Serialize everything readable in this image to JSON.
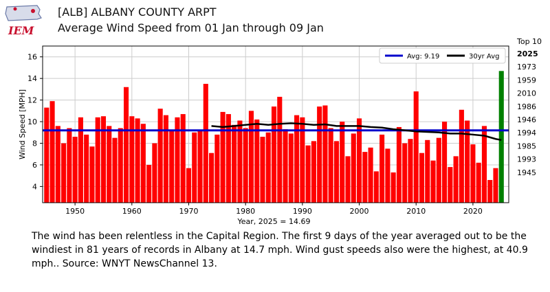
{
  "logo": {
    "text": "IEM",
    "colors": {
      "state": "#d8dcea",
      "mark": "#c8102e"
    }
  },
  "header": {
    "title": "[ALB] ALBANY COUNTY ARPT",
    "subtitle": "Average Wind Speed from 01 Jan through 09 Jan"
  },
  "top10": {
    "title": "Top 10",
    "years": [
      "2025",
      "1973",
      "1959",
      "2010",
      "1986",
      "1946",
      "1994",
      "1985",
      "1993",
      "1945"
    ]
  },
  "caption": "The wind has been relentless in the Capital Region. The first 9 days of the year averaged out to be the windiest in 81 years of records in Albany at 14.7 mph. Wind gust speeds also were the highest, at 40.9 mph.. Source: WNYT NewsChannel 13.",
  "chart_data": {
    "type": "bar",
    "title": "Average Wind Speed from 01 Jan through 09 Jan",
    "xlabel": "Year, 2025 = 14.69",
    "ylabel": "Wind Speed [MPH]",
    "ylim": [
      2.5,
      17.0
    ],
    "xlim": [
      1944.3,
      2026.3
    ],
    "yticks": [
      4,
      6,
      8,
      10,
      12,
      14,
      16
    ],
    "xticks": [
      1950,
      1960,
      1970,
      1980,
      1990,
      2000,
      2010,
      2020
    ],
    "grid": true,
    "legend_position": "top-right",
    "colors": {
      "bar": "#ff0000",
      "highlight": "#008000",
      "avg": "#0000cc",
      "climo": "#000000"
    },
    "highlight_year": 2025,
    "average": {
      "name": "Avg: 9.19",
      "value": 9.19
    },
    "x": [
      1945,
      1946,
      1947,
      1948,
      1949,
      1950,
      1951,
      1952,
      1953,
      1954,
      1955,
      1956,
      1957,
      1958,
      1959,
      1960,
      1961,
      1962,
      1963,
      1964,
      1965,
      1966,
      1967,
      1968,
      1969,
      1970,
      1971,
      1972,
      1973,
      1974,
      1975,
      1976,
      1977,
      1978,
      1979,
      1980,
      1981,
      1982,
      1983,
      1984,
      1985,
      1986,
      1987,
      1988,
      1989,
      1990,
      1991,
      1992,
      1993,
      1994,
      1995,
      1996,
      1997,
      1998,
      1999,
      2000,
      2001,
      2002,
      2003,
      2004,
      2005,
      2006,
      2007,
      2008,
      2009,
      2010,
      2011,
      2012,
      2013,
      2014,
      2015,
      2016,
      2017,
      2018,
      2019,
      2020,
      2021,
      2022,
      2023,
      2024,
      2025
    ],
    "values": [
      11.3,
      11.9,
      9.6,
      8.0,
      9.4,
      8.6,
      10.4,
      8.8,
      7.7,
      10.4,
      10.5,
      9.6,
      8.5,
      9.4,
      13.2,
      10.5,
      10.3,
      9.8,
      6.0,
      8.0,
      11.2,
      10.6,
      9.2,
      10.4,
      10.7,
      5.7,
      9.0,
      9.2,
      13.5,
      7.1,
      8.8,
      10.9,
      10.7,
      9.7,
      10.1,
      9.4,
      11.0,
      10.2,
      8.6,
      9.0,
      11.4,
      12.3,
      9.3,
      8.9,
      10.6,
      10.4,
      7.8,
      8.2,
      11.4,
      11.5,
      9.4,
      8.2,
      10.0,
      6.8,
      8.9,
      10.3,
      7.2,
      7.6,
      5.4,
      8.8,
      7.5,
      5.3,
      9.5,
      8.0,
      8.4,
      12.8,
      7.1,
      8.3,
      6.4,
      8.5,
      10.0,
      5.8,
      6.8,
      11.1,
      10.1,
      7.9,
      6.2,
      9.6,
      4.6,
      5.7,
      14.69
    ],
    "climo": {
      "name": "30yr Avg",
      "x": [
        1974,
        1976,
        1978,
        1980,
        1982,
        1984,
        1986,
        1988,
        1990,
        1992,
        1994,
        1996,
        1998,
        2000,
        2002,
        2004,
        2006,
        2008,
        2010,
        2012,
        2014,
        2016,
        2018,
        2020,
        2022,
        2024,
        2025
      ],
      "values": [
        9.6,
        9.5,
        9.6,
        9.7,
        9.8,
        9.7,
        9.8,
        9.85,
        9.8,
        9.7,
        9.75,
        9.6,
        9.6,
        9.6,
        9.5,
        9.45,
        9.3,
        9.2,
        9.1,
        9.05,
        9.0,
        8.9,
        8.9,
        8.8,
        8.7,
        8.4,
        8.3
      ]
    }
  }
}
